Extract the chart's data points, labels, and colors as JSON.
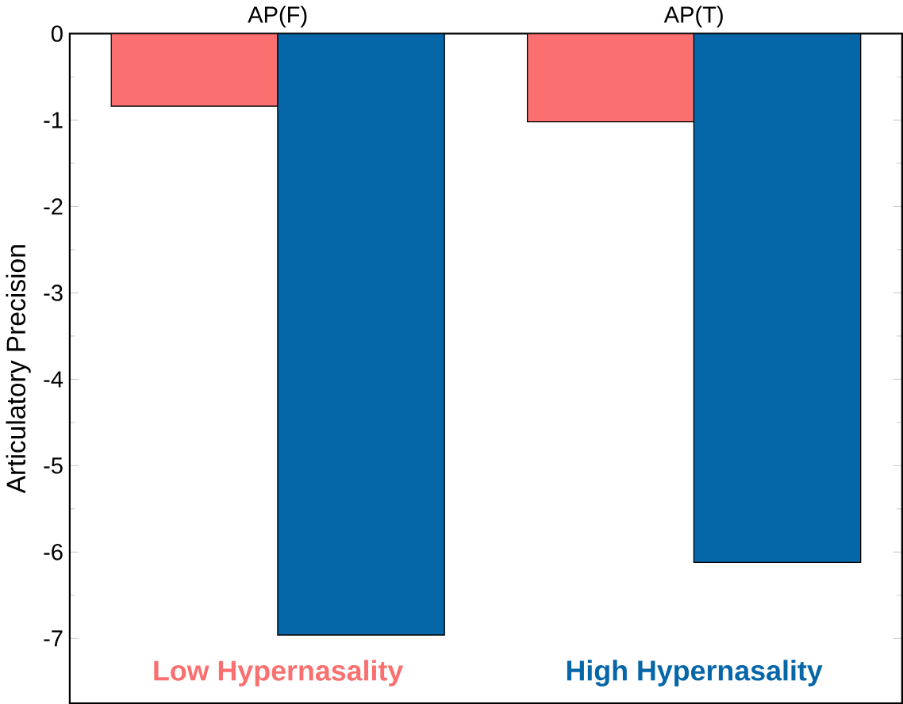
{
  "chart_data": {
    "type": "bar",
    "ylabel": "Articulatory Precision",
    "categories": [
      "AP(F)",
      "AP(T)"
    ],
    "series": [
      {
        "name": "Low Hypernasality",
        "color": "#fa7070",
        "values": [
          -0.84,
          -1.02
        ]
      },
      {
        "name": "High Hypernasality",
        "color": "#0566a8",
        "values": [
          -6.96,
          -6.12
        ]
      }
    ],
    "ylim": [
      -7.75,
      0
    ],
    "yticks": [
      0,
      -1,
      -2,
      -3,
      -4,
      -5,
      -6,
      -7
    ],
    "grid": false,
    "legend": "bottom"
  }
}
